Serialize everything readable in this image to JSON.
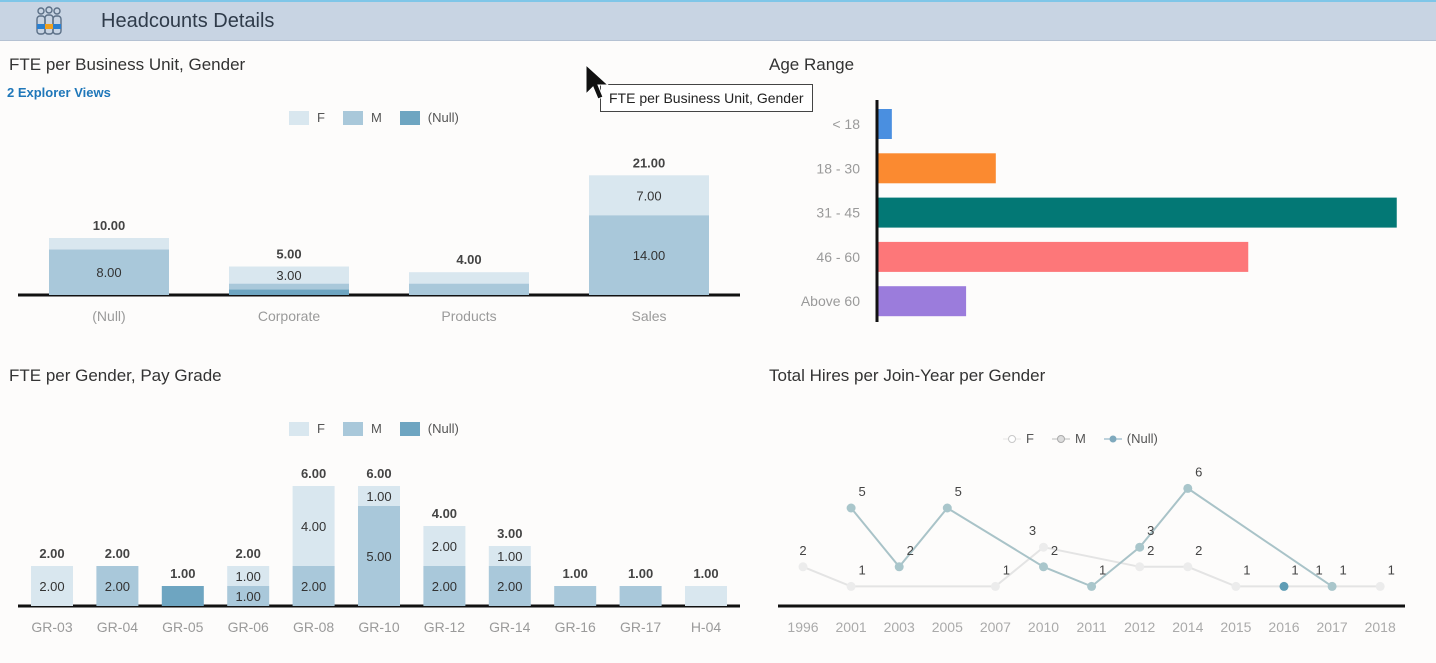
{
  "header": {
    "title": "Headcounts Details",
    "icon": "people-group-icon"
  },
  "tooltip": {
    "text": "FTE per Business Unit, Gender"
  },
  "colors": {
    "F": "#d9e7ef",
    "M": "#a9c8da",
    "Null": "#6ea5c1",
    "axis": "#111111"
  },
  "chart_data": [
    {
      "id": "bu",
      "type": "bar",
      "stacked": true,
      "title": "FTE per Business Unit, Gender",
      "link": "2 Explorer Views",
      "legend": [
        "F",
        "M",
        "(Null)"
      ],
      "categories": [
        "(Null)",
        "Corporate",
        "Products",
        "Sales"
      ],
      "series": [
        {
          "name": "(Null)",
          "values": [
            0,
            1,
            0,
            0
          ]
        },
        {
          "name": "M",
          "values": [
            8,
            1,
            2,
            14
          ]
        },
        {
          "name": "F",
          "values": [
            2,
            3,
            2,
            7
          ]
        }
      ],
      "totals": [
        "10.00",
        "5.00",
        "4.00",
        "21.00"
      ]
    },
    {
      "id": "age",
      "type": "bar",
      "orientation": "horizontal",
      "title": "Age Range",
      "categories": [
        "< 18",
        "18 - 30",
        "31 - 45",
        "46 - 60",
        "Above 60"
      ],
      "values": [
        1,
        8,
        35,
        25,
        6
      ],
      "bar_colors": [
        "#4a8fe0",
        "#fb8a30",
        "#037875",
        "#fd7779",
        "#9b7cdc"
      ]
    },
    {
      "id": "pg",
      "type": "bar",
      "stacked": true,
      "title": "FTE per Gender, Pay Grade",
      "legend": [
        "F",
        "M",
        "(Null)"
      ],
      "categories": [
        "GR-03",
        "GR-04",
        "GR-05",
        "GR-06",
        "GR-08",
        "GR-10",
        "GR-12",
        "GR-14",
        "GR-16",
        "GR-17",
        "H-04"
      ],
      "series": [
        {
          "name": "(Null)",
          "values": [
            0,
            0,
            1,
            0,
            0,
            0,
            0,
            0,
            0,
            0,
            0
          ]
        },
        {
          "name": "M",
          "values": [
            0,
            2,
            0,
            1,
            2,
            5,
            2,
            2,
            1,
            1,
            0
          ]
        },
        {
          "name": "F",
          "values": [
            2,
            0,
            0,
            1,
            4,
            1,
            2,
            1,
            0,
            0,
            1
          ]
        }
      ],
      "totals": [
        "2.00",
        "2.00",
        "1.00",
        "2.00",
        "6.00",
        "6.00",
        "4.00",
        "3.00",
        "1.00",
        "1.00",
        "1.00"
      ]
    },
    {
      "id": "hires",
      "type": "line",
      "title": "Total Hires per Join-Year per Gender",
      "legend": [
        "F",
        "M",
        "(Null)"
      ],
      "x": [
        "1996",
        "2001",
        "2003",
        "2005",
        "2007",
        "2010",
        "2011",
        "2012",
        "2014",
        "2015",
        "2016",
        "2017",
        "2018"
      ],
      "series": [
        {
          "name": "F",
          "values": [
            2,
            1,
            null,
            null,
            1,
            3,
            null,
            2,
            2,
            1,
            null,
            1,
            1
          ]
        },
        {
          "name": "M",
          "values": [
            null,
            5,
            2,
            5,
            null,
            2,
            1,
            3,
            6,
            null,
            null,
            1,
            null
          ]
        },
        {
          "name": "(Null)",
          "values": [
            null,
            null,
            null,
            null,
            null,
            null,
            null,
            null,
            null,
            null,
            1,
            null,
            null
          ]
        }
      ]
    }
  ]
}
